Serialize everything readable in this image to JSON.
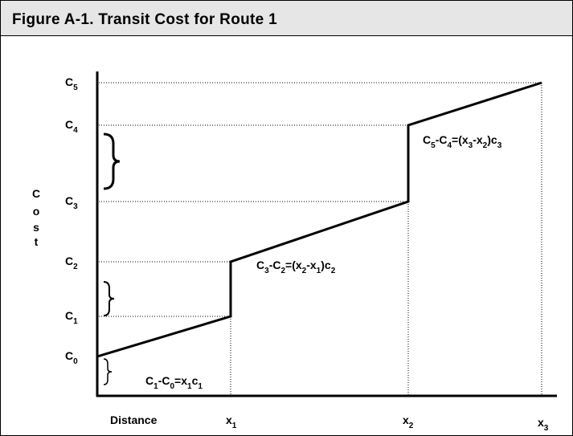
{
  "title": "Figure A-1. Transit Cost for Route 1",
  "y_axis_label": [
    "C",
    "o",
    "s",
    "t"
  ],
  "x_axis_label": "Distance",
  "y_labels": [
    [
      [
        "C",
        "5"
      ]
    ],
    [
      [
        "C",
        "4"
      ]
    ],
    [
      [
        "C",
        "3"
      ]
    ],
    [
      [
        "C",
        "2"
      ]
    ],
    [
      [
        "C",
        "1"
      ]
    ],
    [
      [
        "C",
        "0"
      ]
    ]
  ],
  "x_labels": [
    [
      [
        "x",
        "1"
      ]
    ],
    [
      [
        "x",
        "2"
      ]
    ],
    [
      [
        "x",
        "3"
      ]
    ]
  ],
  "equations": [
    [
      [
        "C",
        "1"
      ],
      [
        "-C",
        "0"
      ],
      [
        "=x",
        "1"
      ],
      [
        "c",
        "1"
      ]
    ],
    [
      [
        "C",
        "3"
      ],
      [
        "-C",
        "2"
      ],
      [
        "=(x",
        "2"
      ],
      [
        "-x",
        "1"
      ],
      [
        ")c",
        "2"
      ]
    ],
    [
      [
        "C",
        "5"
      ],
      [
        "-C",
        "4"
      ],
      [
        "=(x",
        "3"
      ],
      [
        "-x",
        "2"
      ],
      [
        ")c",
        "3"
      ]
    ]
  ]
}
